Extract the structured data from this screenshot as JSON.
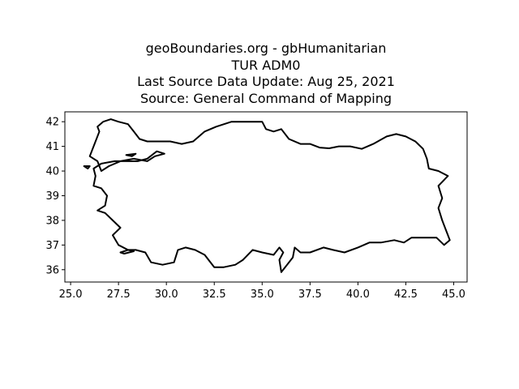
{
  "title_lines": [
    "geoBoundaries.org - gbHumanitarian",
    "TUR ADM0",
    "Last Source Data Update: Aug 25, 2021",
    "Source: General Command of Mapping"
  ],
  "colors": {
    "outline": "#000000",
    "background": "#ffffff",
    "axes": "#000000"
  },
  "chart_data": {
    "type": "map",
    "xlim": [
      24.7,
      45.7
    ],
    "ylim": [
      35.5,
      42.4
    ],
    "x_ticks": [
      "25.0",
      "27.5",
      "30.0",
      "32.5",
      "35.0",
      "37.5",
      "40.0",
      "42.5",
      "45.0"
    ],
    "y_ticks": [
      "36",
      "37",
      "38",
      "39",
      "40",
      "41",
      "42"
    ],
    "grid": false,
    "series": [
      {
        "points": [
          [
            26.0,
            40.6
          ],
          [
            26.3,
            41.2
          ],
          [
            26.5,
            41.6
          ],
          [
            26.4,
            41.8
          ],
          [
            26.7,
            42.0
          ],
          [
            27.1,
            42.1
          ],
          [
            27.5,
            42.0
          ],
          [
            28.0,
            41.9
          ],
          [
            28.3,
            41.6
          ],
          [
            28.6,
            41.3
          ],
          [
            29.0,
            41.2
          ],
          [
            29.5,
            41.2
          ],
          [
            30.2,
            41.2
          ],
          [
            30.8,
            41.1
          ],
          [
            31.4,
            41.2
          ],
          [
            32.0,
            41.6
          ],
          [
            32.6,
            41.8
          ],
          [
            33.4,
            42.0
          ],
          [
            34.2,
            42.0
          ],
          [
            35.0,
            42.0
          ],
          [
            35.2,
            41.7
          ],
          [
            35.6,
            41.6
          ],
          [
            36.0,
            41.7
          ],
          [
            36.4,
            41.3
          ],
          [
            37.0,
            41.1
          ],
          [
            37.5,
            41.1
          ],
          [
            38.0,
            40.95
          ],
          [
            38.5,
            40.92
          ],
          [
            39.0,
            41.0
          ],
          [
            39.6,
            41.0
          ],
          [
            40.2,
            40.9
          ],
          [
            40.8,
            41.1
          ],
          [
            41.5,
            41.4
          ],
          [
            42.0,
            41.5
          ],
          [
            42.5,
            41.4
          ],
          [
            43.0,
            41.2
          ],
          [
            43.4,
            40.9
          ],
          [
            43.6,
            40.5
          ],
          [
            43.7,
            40.1
          ],
          [
            44.2,
            40.0
          ],
          [
            44.7,
            39.8
          ],
          [
            44.2,
            39.4
          ],
          [
            44.4,
            38.9
          ],
          [
            44.2,
            38.5
          ],
          [
            44.4,
            38.0
          ],
          [
            44.6,
            37.6
          ],
          [
            44.8,
            37.2
          ],
          [
            44.5,
            37.0
          ],
          [
            44.1,
            37.3
          ],
          [
            43.5,
            37.3
          ],
          [
            42.8,
            37.3
          ],
          [
            42.4,
            37.1
          ],
          [
            41.9,
            37.2
          ],
          [
            41.2,
            37.1
          ],
          [
            40.6,
            37.1
          ],
          [
            40.0,
            36.9
          ],
          [
            39.3,
            36.7
          ],
          [
            38.7,
            36.8
          ],
          [
            38.2,
            36.9
          ],
          [
            37.5,
            36.7
          ],
          [
            37.0,
            36.7
          ],
          [
            36.7,
            36.9
          ],
          [
            36.6,
            36.5
          ],
          [
            36.3,
            36.2
          ],
          [
            36.0,
            35.9
          ],
          [
            35.9,
            36.4
          ],
          [
            36.1,
            36.7
          ],
          [
            35.9,
            36.9
          ],
          [
            35.6,
            36.6
          ],
          [
            35.0,
            36.7
          ],
          [
            34.5,
            36.8
          ],
          [
            34.0,
            36.4
          ],
          [
            33.6,
            36.2
          ],
          [
            33.0,
            36.1
          ],
          [
            32.5,
            36.1
          ],
          [
            32.0,
            36.6
          ],
          [
            31.5,
            36.8
          ],
          [
            31.0,
            36.9
          ],
          [
            30.6,
            36.8
          ],
          [
            30.4,
            36.3
          ],
          [
            29.8,
            36.2
          ],
          [
            29.2,
            36.3
          ],
          [
            28.9,
            36.7
          ],
          [
            28.4,
            36.8
          ],
          [
            28.0,
            36.8
          ],
          [
            27.5,
            37.0
          ],
          [
            27.2,
            37.4
          ],
          [
            27.6,
            37.7
          ],
          [
            27.2,
            38.0
          ],
          [
            26.8,
            38.3
          ],
          [
            26.4,
            38.4
          ],
          [
            26.8,
            38.6
          ],
          [
            26.9,
            39.0
          ],
          [
            26.6,
            39.3
          ],
          [
            26.2,
            39.4
          ],
          [
            26.3,
            39.8
          ],
          [
            26.2,
            40.1
          ],
          [
            26.6,
            40.3
          ],
          [
            27.3,
            40.4
          ],
          [
            28.0,
            40.4
          ],
          [
            28.5,
            40.4
          ],
          [
            29.0,
            40.5
          ],
          [
            29.5,
            40.8
          ],
          [
            29.9,
            40.7
          ],
          [
            29.4,
            40.6
          ],
          [
            29.0,
            40.4
          ],
          [
            28.3,
            40.5
          ],
          [
            27.6,
            40.4
          ],
          [
            27.0,
            40.2
          ],
          [
            26.6,
            40.0
          ],
          [
            26.4,
            40.4
          ],
          [
            26.0,
            40.6
          ]
        ]
      },
      {
        "points": [
          [
            25.7,
            40.2
          ],
          [
            26.0,
            40.2
          ],
          [
            25.9,
            40.1
          ],
          [
            25.7,
            40.2
          ]
        ]
      },
      {
        "points": [
          [
            27.9,
            40.65
          ],
          [
            28.4,
            40.7
          ],
          [
            28.2,
            40.6
          ],
          [
            27.9,
            40.65
          ]
        ]
      },
      {
        "points": [
          [
            27.6,
            36.7
          ],
          [
            28.0,
            36.8
          ],
          [
            28.3,
            36.75
          ],
          [
            27.8,
            36.65
          ],
          [
            27.6,
            36.7
          ]
        ]
      }
    ]
  }
}
